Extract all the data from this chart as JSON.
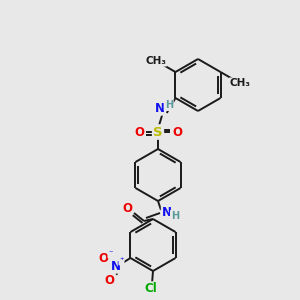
{
  "bg_color": "#e8e8e8",
  "bond_color": "#1a1a1a",
  "bond_width": 1.4,
  "atom_colors": {
    "C": "#1a1a1a",
    "H": "#5a9a9a",
    "N": "#1010ee",
    "O": "#ee0000",
    "S": "#bbbb00",
    "Cl": "#00aa00"
  },
  "fs": 8.5,
  "fs_small": 7.0,
  "fs_me": 7.5
}
